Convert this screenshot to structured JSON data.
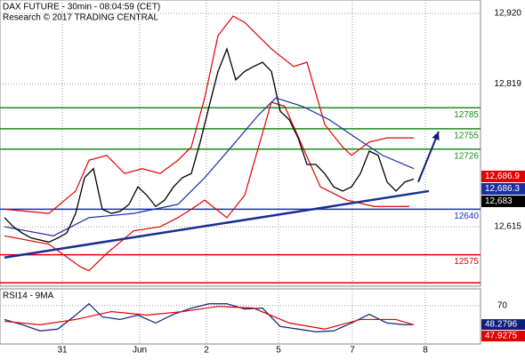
{
  "chart_data": {
    "type": "line",
    "title": "DAX FUTURE - 30min - 08:04:59 (CET)",
    "subtitle": "Research © 2017 TRADING CENTRAL",
    "xlim": [
      -0.5,
      53.5
    ],
    "xticks": [
      {
        "value": 6.5,
        "label": "31"
      },
      {
        "value": 15.2,
        "label": "Jun"
      },
      {
        "value": 22.7,
        "label": "2"
      },
      {
        "value": 30.8,
        "label": "5"
      },
      {
        "value": 39.1,
        "label": "7"
      },
      {
        "value": 47.3,
        "label": "8"
      }
    ],
    "ylim": [
      12530,
      12939
    ],
    "yticks": [
      {
        "value": 12920,
        "label": "12,920"
      },
      {
        "value": 12819,
        "label": "12,819"
      },
      {
        "value": 12615,
        "label": "12,615"
      }
    ],
    "grid": true,
    "x": [
      0,
      1,
      2,
      3,
      4,
      5,
      6,
      7,
      8,
      9,
      10,
      11,
      12,
      13,
      14,
      15,
      16,
      17,
      18,
      19,
      20,
      21,
      22,
      23,
      24,
      25,
      26,
      27,
      28,
      29,
      30,
      31,
      32,
      33,
      34,
      35,
      36,
      37,
      38,
      39,
      40,
      41,
      42,
      43,
      44,
      45,
      46
    ],
    "series": [
      {
        "name": "DAX FUTURE",
        "color": "#000000",
        "values": [
          12628,
          12615,
          12606,
          12599,
          12596,
          12593,
          12599,
          12606,
          12634,
          12685,
          12698,
          12640,
          12634,
          12637,
          12647,
          12672,
          12660,
          12644,
          12653,
          12672,
          12685,
          12691,
          12736,
          12787,
          12837,
          12869,
          12825,
          12837,
          12844,
          12850,
          12837,
          12780,
          12768,
          12742,
          12704,
          12704,
          12691,
          12672,
          12666,
          12672,
          12691,
          12723,
          12717,
          12679,
          12666,
          12679,
          12683
        ]
      }
    ],
    "overlays": [
      {
        "color": "#e00000",
        "x": [
          0,
          5,
          8,
          9.5,
          11.5,
          13.5,
          15.5,
          17.5,
          19.5,
          21,
          22.5,
          24,
          25.7,
          27,
          28.5,
          30,
          32.5,
          34,
          36,
          38,
          39,
          41,
          43,
          46
        ],
        "values": [
          12640,
          12634,
          12666,
          12710,
          12717,
          12691,
          12698,
          12691,
          12710,
          12729,
          12799,
          12888,
          12916,
          12907,
          12888,
          12869,
          12844,
          12850,
          12761,
          12729,
          12717,
          12736,
          12742,
          12742
        ]
      },
      {
        "color": "#e00000",
        "x": [
          0,
          5,
          8.5,
          9.5,
          11.5,
          14.5,
          17.5,
          19.5,
          21,
          22.5,
          25,
          27,
          30,
          31.5,
          35.5,
          38.5,
          41.5,
          45.5
        ],
        "values": [
          12602,
          12590,
          12558,
          12552,
          12577,
          12609,
          12615,
          12628,
          12640,
          12653,
          12628,
          12660,
          12793,
          12787,
          12672,
          12653,
          12644,
          12644
        ]
      },
      {
        "color": "#1a2fa0",
        "x": [
          0,
          5.5,
          9.5,
          14.5,
          19.5,
          22.5,
          25.5,
          28.5,
          30.5,
          33.5,
          36.5,
          39.5,
          42.5,
          46
        ],
        "values": [
          12615,
          12602,
          12628,
          12634,
          12647,
          12685,
          12729,
          12774,
          12799,
          12787,
          12768,
          12742,
          12717,
          12698
        ]
      }
    ],
    "levels": [
      {
        "value": 12785,
        "color": "#1e8a1e"
      },
      {
        "value": 12755,
        "color": "#1e8a1e"
      },
      {
        "value": 12726,
        "color": "#1e8a1e"
      },
      {
        "value": 12640,
        "color": "#1a2fc0"
      },
      {
        "value": 12575,
        "color": "#e00000"
      }
    ],
    "extra_lines": [
      {
        "value": 12535,
        "color": "#e00000"
      }
    ],
    "trendline": {
      "color": "#1a2f8f",
      "x": [
        0,
        47.7
      ],
      "values": [
        12571,
        12666
      ]
    },
    "arrow": {
      "color": "#0d1f7a",
      "x": [
        46.5,
        48.8
      ],
      "values": [
        12679,
        12751
      ]
    },
    "markers": [
      {
        "value": 12686.9,
        "label": "12,686.9",
        "color": "#e00000"
      },
      {
        "value": 12686.3,
        "label": "12,686.3",
        "color": "#1a2fa0"
      },
      {
        "value": 12683,
        "label": "12,683",
        "color": "#000000"
      }
    ],
    "rsi": {
      "title": "RSI14 - 9MA",
      "ylim": [
        26,
        89
      ],
      "yticks": [
        70
      ],
      "series": [
        {
          "color": "#0d1f7a",
          "x": [
            0,
            2,
            4,
            6,
            8,
            9.5,
            11,
            13,
            15,
            17,
            19,
            21,
            23,
            25,
            27,
            29,
            31,
            33,
            35,
            37,
            39,
            41,
            43,
            45,
            46
          ],
          "values": [
            54,
            48,
            41,
            43,
            59,
            72,
            57,
            54,
            59,
            50,
            60,
            67,
            72,
            72,
            66,
            67,
            46,
            43,
            40,
            41,
            50,
            60,
            50,
            48,
            48.2796
          ]
        },
        {
          "color": "#e00000",
          "x": [
            0,
            4,
            8,
            12,
            16,
            20,
            24,
            28,
            32,
            36,
            40,
            44,
            46
          ],
          "values": [
            52,
            48,
            54,
            63,
            59,
            63,
            69,
            67,
            50,
            43,
            54,
            54,
            47.9275
          ]
        }
      ],
      "markers": [
        {
          "value": 48.2796,
          "label": "48.2796",
          "color": "#0d1f7a"
        },
        {
          "value": 47.9275,
          "label": "47.9275",
          "color": "#e00000"
        }
      ]
    }
  }
}
